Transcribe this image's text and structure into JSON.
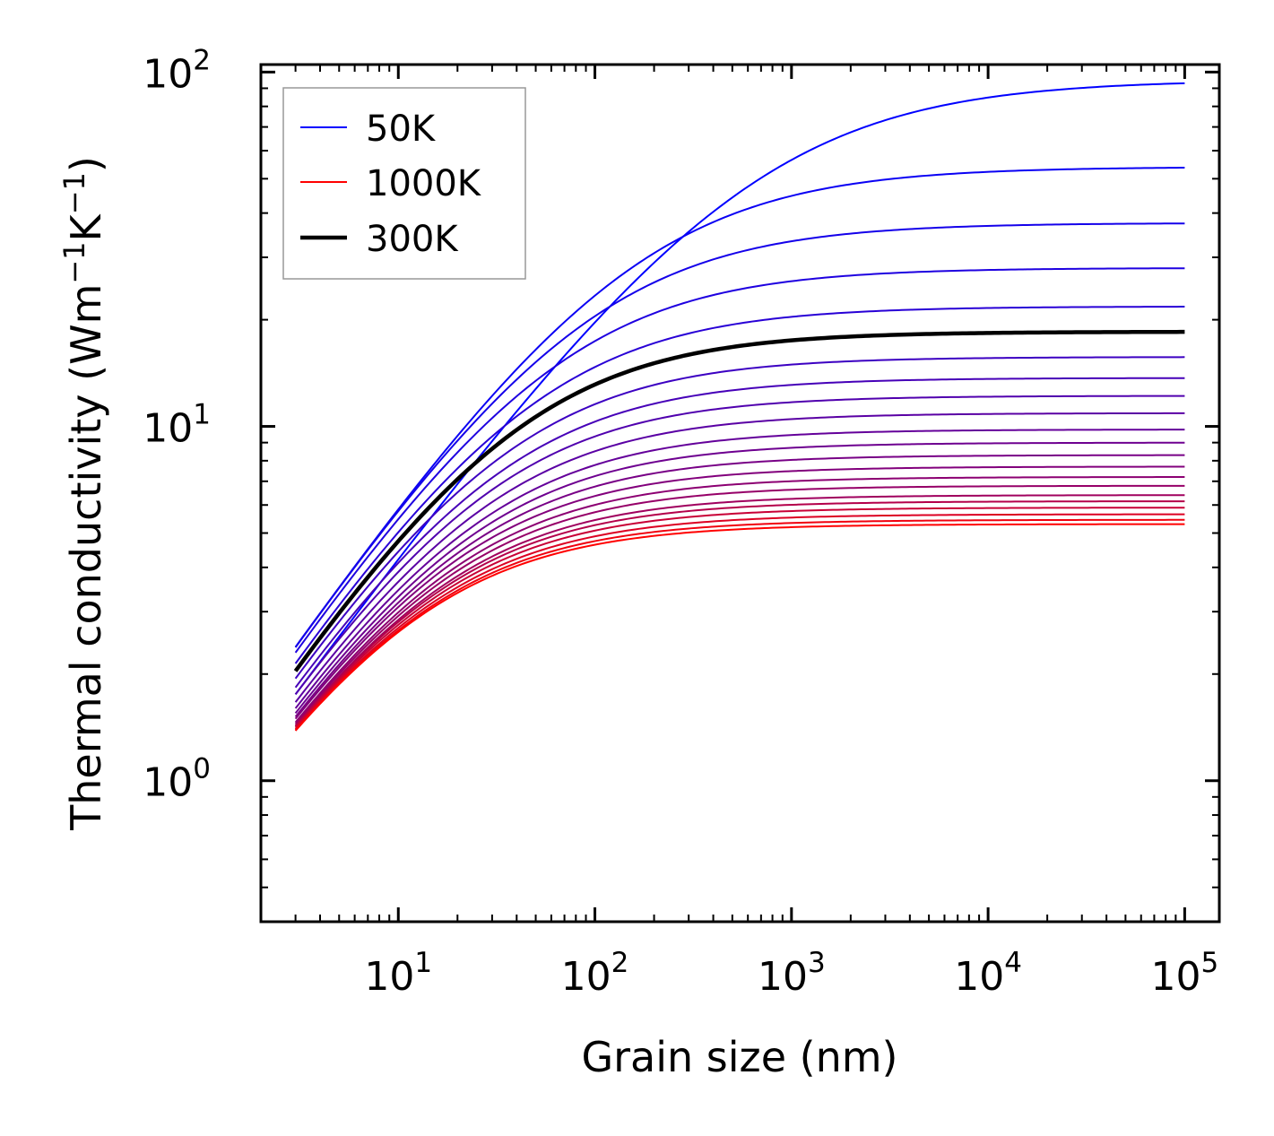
{
  "chart_data": {
    "type": "line",
    "title": "",
    "xlabel": "Grain size (nm)",
    "ylabel": {
      "base": "Thermal conductivity (Wm",
      "sup1": "−1",
      "mid": "K",
      "sup2": "−1",
      "end": ")"
    },
    "xscale": "log",
    "yscale": "log",
    "xlim": [
      2,
      150000
    ],
    "ylim": [
      0.4,
      105
    ],
    "x_major_ticks": [
      {
        "value": 10,
        "base": "10",
        "exp": "1"
      },
      {
        "value": 100,
        "base": "10",
        "exp": "2"
      },
      {
        "value": 1000,
        "base": "10",
        "exp": "3"
      },
      {
        "value": 10000,
        "base": "10",
        "exp": "4"
      },
      {
        "value": 100000,
        "base": "10",
        "exp": "5"
      }
    ],
    "y_major_ticks": [
      {
        "value": 1,
        "base": "10",
        "exp": "0"
      },
      {
        "value": 10,
        "base": "10",
        "exp": "1"
      },
      {
        "value": 100,
        "base": "10",
        "exp": "2"
      }
    ],
    "x_range": [
      3,
      100000
    ],
    "model": "k(L) = k_inf / (1 + (Lc / L)^p)",
    "series": [
      {
        "name": "50K",
        "k_inf": 95.0,
        "Lc": 600,
        "p": 0.75,
        "color": "#0000ff"
      },
      {
        "name": "",
        "k_inf": 54.0,
        "Lc": 140,
        "p": 0.8,
        "color": "#0a00f4"
      },
      {
        "name": "",
        "k_inf": 37.5,
        "Lc": 80,
        "p": 0.82,
        "color": "#1400ea"
      },
      {
        "name": "",
        "k_inf": 28.0,
        "Lc": 55,
        "p": 0.83,
        "color": "#1e00e0"
      },
      {
        "name": "",
        "k_inf": 21.8,
        "Lc": 42,
        "p": 0.84,
        "color": "#2800d6"
      },
      {
        "name": "",
        "k_inf": 15.7,
        "Lc": 30,
        "p": 0.85,
        "color": "#3c00c2"
      },
      {
        "name": "",
        "k_inf": 13.7,
        "Lc": 27,
        "p": 0.85,
        "color": "#4600b8"
      },
      {
        "name": "",
        "k_inf": 12.2,
        "Lc": 24.5,
        "p": 0.85,
        "color": "#5000ae"
      },
      {
        "name": "",
        "k_inf": 10.9,
        "Lc": 22.5,
        "p": 0.85,
        "color": "#5a00a4"
      },
      {
        "name": "",
        "k_inf": 9.8,
        "Lc": 20.5,
        "p": 0.85,
        "color": "#64009a"
      },
      {
        "name": "",
        "k_inf": 9.0,
        "Lc": 19.0,
        "p": 0.85,
        "color": "#6e0090"
      },
      {
        "name": "",
        "k_inf": 8.3,
        "Lc": 17.5,
        "p": 0.85,
        "color": "#780086"
      },
      {
        "name": "",
        "k_inf": 7.7,
        "Lc": 16.0,
        "p": 0.85,
        "color": "#82007c"
      },
      {
        "name": "",
        "k_inf": 7.2,
        "Lc": 15.0,
        "p": 0.85,
        "color": "#8c0072"
      },
      {
        "name": "",
        "k_inf": 6.8,
        "Lc": 14.0,
        "p": 0.85,
        "color": "#960068"
      },
      {
        "name": "",
        "k_inf": 6.4,
        "Lc": 13.0,
        "p": 0.85,
        "color": "#a0005e"
      },
      {
        "name": "",
        "k_inf": 6.15,
        "Lc": 12.3,
        "p": 0.85,
        "color": "#b4004a"
      },
      {
        "name": "",
        "k_inf": 5.9,
        "Lc": 11.7,
        "p": 0.85,
        "color": "#c80036"
      },
      {
        "name": "",
        "k_inf": 5.65,
        "Lc": 11.1,
        "p": 0.85,
        "color": "#dc0022"
      },
      {
        "name": "",
        "k_inf": 5.45,
        "Lc": 10.6,
        "p": 0.85,
        "color": "#f0000e"
      },
      {
        "name": "1000K",
        "k_inf": 5.3,
        "Lc": 10.2,
        "p": 0.85,
        "color": "#ff0000"
      },
      {
        "name": "300K",
        "k_inf": 18.5,
        "Lc": 35,
        "p": 0.85,
        "color": "#000000",
        "bold": true
      }
    ],
    "legend": {
      "position": "top-left",
      "entries": [
        {
          "label": "50K",
          "color": "#0000ff",
          "bold": false
        },
        {
          "label": "1000K",
          "color": "#ff0000",
          "bold": false
        },
        {
          "label": "300K",
          "color": "#000000",
          "bold": true
        }
      ]
    }
  }
}
